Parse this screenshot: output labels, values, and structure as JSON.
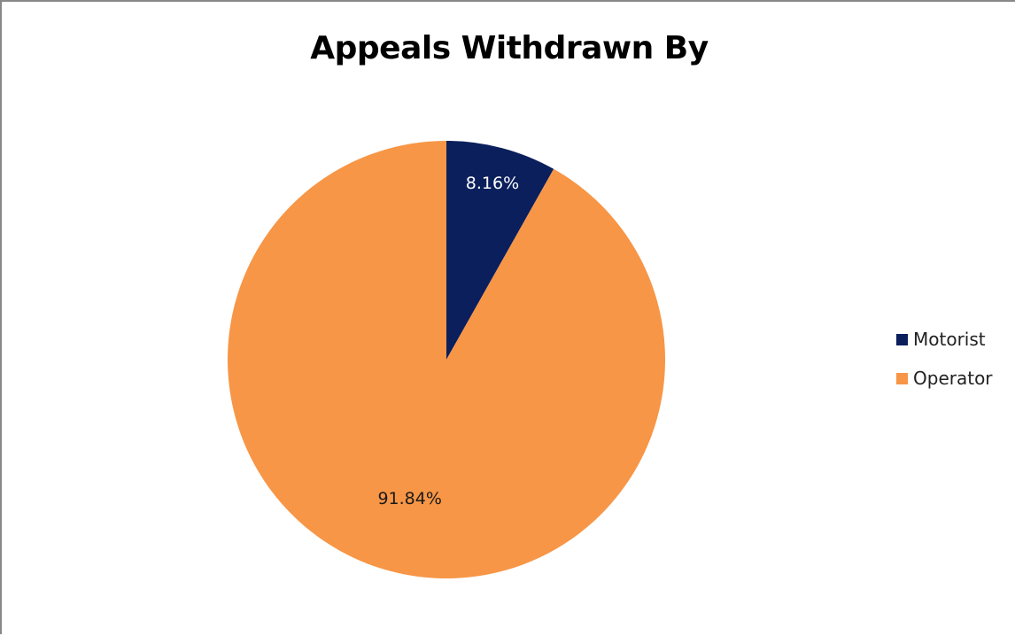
{
  "chart_data": {
    "type": "pie",
    "title": "Appeals Withdrawn By",
    "categories": [
      "Motorist",
      "Operator"
    ],
    "values": [
      8.16,
      91.84
    ],
    "labels": [
      "8.16%",
      "91.84%"
    ],
    "colors": [
      "#0b1f5c",
      "#f79646"
    ],
    "label_colors": [
      "#ffffff",
      "#1a1a1a"
    ],
    "start_angle_deg": 0,
    "direction": "clockwise",
    "legend_position": "right"
  }
}
